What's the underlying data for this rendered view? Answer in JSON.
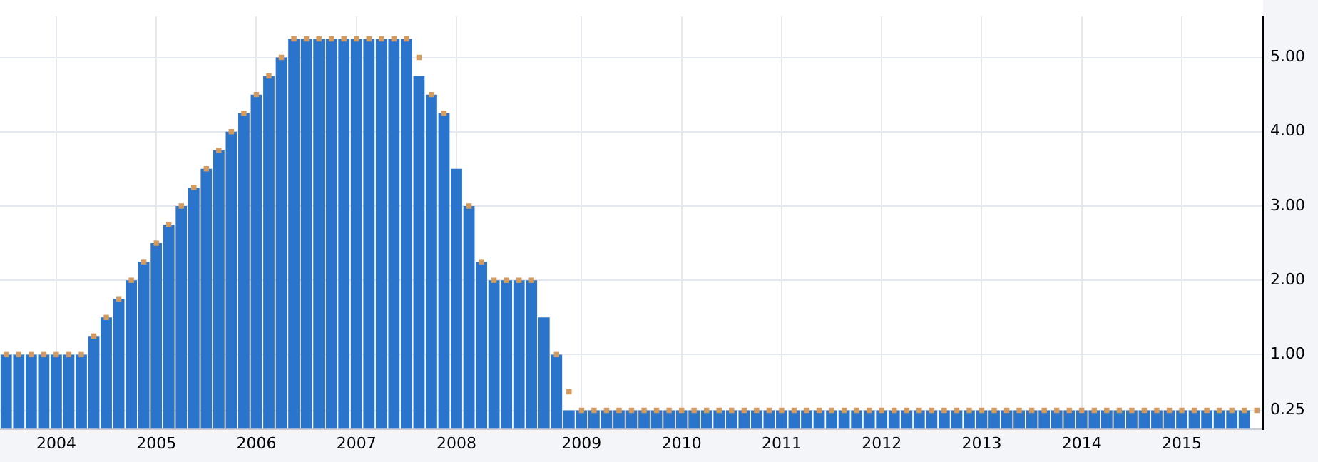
{
  "chart_data": {
    "type": "bar",
    "categories": [
      null,
      null,
      null,
      null,
      "2004",
      null,
      null,
      null,
      null,
      null,
      null,
      null,
      "2005",
      null,
      null,
      null,
      null,
      null,
      null,
      null,
      "2006",
      null,
      null,
      null,
      null,
      null,
      null,
      null,
      "2007",
      null,
      null,
      null,
      null,
      null,
      null,
      null,
      "2008",
      null,
      null,
      null,
      null,
      null,
      null,
      null,
      null,
      null,
      "2009",
      null,
      null,
      null,
      null,
      null,
      null,
      null,
      "2010",
      null,
      null,
      null,
      null,
      null,
      null,
      null,
      "2011",
      null,
      null,
      null,
      null,
      null,
      null,
      null,
      "2012",
      null,
      null,
      null,
      null,
      null,
      null,
      null,
      "2013",
      null,
      null,
      null,
      null,
      null,
      null,
      null,
      "2014",
      null,
      null,
      null,
      null,
      null,
      null,
      null,
      "2015",
      null,
      null,
      null,
      null,
      null,
      null
    ],
    "series": [
      {
        "type": "bar",
        "color": "#2a74cc",
        "values": [
          1,
          1,
          1,
          1,
          1,
          1,
          1,
          1.25,
          1.5,
          1.75,
          2,
          2.25,
          2.5,
          2.75,
          3,
          3.25,
          3.5,
          3.75,
          4,
          4.25,
          4.5,
          4.75,
          5,
          5.25,
          5.25,
          5.25,
          5.25,
          5.25,
          5.25,
          5.25,
          5.25,
          5.25,
          5.25,
          4.75,
          4.5,
          4.25,
          3.5,
          3,
          2.25,
          2,
          2,
          2,
          2,
          1.5,
          1,
          0.25,
          0.25,
          0.25,
          0.25,
          0.25,
          0.25,
          0.25,
          0.25,
          0.25,
          0.25,
          0.25,
          0.25,
          0.25,
          0.25,
          0.25,
          0.25,
          0.25,
          0.25,
          0.25,
          0.25,
          0.25,
          0.25,
          0.25,
          0.25,
          0.25,
          0.25,
          0.25,
          0.25,
          0.25,
          0.25,
          0.25,
          0.25,
          0.25,
          0.25,
          0.25,
          0.25,
          0.25,
          0.25,
          0.25,
          0.25,
          0.25,
          0.25,
          0.25,
          0.25,
          0.25,
          0.25,
          0.25,
          0.25,
          0.25,
          0.25,
          0.25,
          0.25,
          0.25,
          0.25,
          0.25,
          null
        ]
      },
      {
        "type": "scatter",
        "marker": "square",
        "color": "#d49a5e",
        "values": [
          1,
          1,
          1,
          1,
          1,
          1,
          1,
          1.25,
          1.5,
          1.75,
          2,
          2.25,
          2.5,
          2.75,
          3,
          3.25,
          3.5,
          3.75,
          4,
          4.25,
          4.5,
          4.75,
          5,
          5.25,
          5.25,
          5.25,
          5.25,
          5.25,
          5.25,
          5.25,
          5.25,
          5.25,
          5.25,
          5,
          4.5,
          4.25,
          null,
          3,
          2.25,
          2,
          2,
          2,
          2,
          null,
          1,
          0.5,
          0.25,
          0.25,
          0.25,
          0.25,
          0.25,
          0.25,
          0.25,
          0.25,
          0.25,
          0.25,
          0.25,
          0.25,
          0.25,
          0.25,
          0.25,
          0.25,
          0.25,
          0.25,
          0.25,
          0.25,
          0.25,
          0.25,
          0.25,
          0.25,
          0.25,
          0.25,
          0.25,
          0.25,
          0.25,
          0.25,
          0.25,
          0.25,
          0.25,
          0.25,
          0.25,
          0.25,
          0.25,
          0.25,
          0.25,
          0.25,
          0.25,
          0.25,
          0.25,
          0.25,
          0.25,
          0.25,
          0.25,
          0.25,
          0.25,
          0.25,
          0.25,
          0.25,
          0.25,
          0.25,
          0.25
        ]
      }
    ],
    "ylim": [
      0,
      5.55
    ],
    "yticks": [
      {
        "value": 0.25,
        "label": "0.25"
      },
      {
        "value": 1,
        "label": "1.00"
      },
      {
        "value": 2,
        "label": "2.00"
      },
      {
        "value": 3,
        "label": "3.00"
      },
      {
        "value": 4,
        "label": "4.00"
      },
      {
        "value": 5,
        "label": "5.00"
      }
    ],
    "grid": true,
    "legend": false
  }
}
